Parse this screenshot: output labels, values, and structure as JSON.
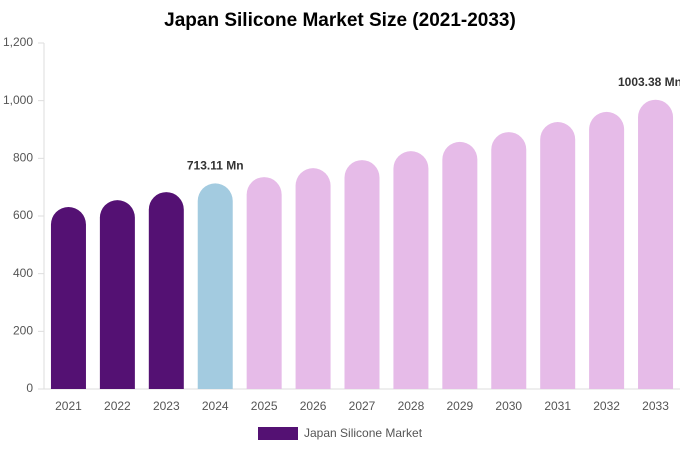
{
  "chart_data": {
    "type": "bar",
    "title": "Japan Silicone Market Size (2021-2033)",
    "categories": [
      "2021",
      "2022",
      "2023",
      "2024",
      "2025",
      "2026",
      "2027",
      "2028",
      "2029",
      "2030",
      "2031",
      "2032",
      "2033"
    ],
    "series": [
      {
        "name": "Japan Silicone Market",
        "color": "#541173",
        "colors": [
          "#541173",
          "#541173",
          "#541173",
          "#a3cbe0",
          "#e6bbe8",
          "#e6bbe8",
          "#e6bbe8",
          "#e6bbe8",
          "#e6bbe8",
          "#e6bbe8",
          "#e6bbe8",
          "#e6bbe8",
          "#e6bbe8"
        ],
        "values": [
          631,
          655,
          683,
          713.11,
          735,
          766,
          794,
          825,
          857,
          891,
          926,
          961,
          1003.38
        ],
        "value_labels": [
          null,
          null,
          null,
          "713.11 Mn",
          null,
          null,
          null,
          null,
          null,
          null,
          null,
          null,
          "1003.38 Mn"
        ]
      }
    ],
    "ylim": [
      0,
      1200
    ],
    "yticks": [
      0,
      200,
      400,
      600,
      800,
      {
        "value": 1000,
        "label": "1,000"
      },
      {
        "value": 1200,
        "label": "1,200"
      }
    ],
    "grid": false
  }
}
